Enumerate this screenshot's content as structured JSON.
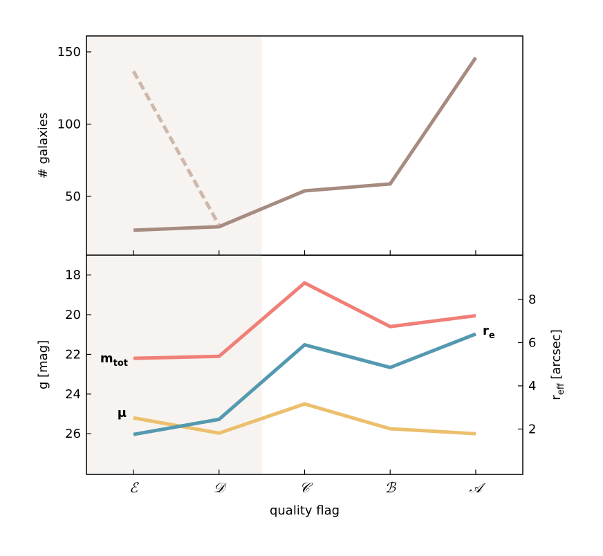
{
  "chart_data": [
    {
      "type": "line",
      "ylabel": "# galaxies",
      "xlim": [
        -0.55,
        4.55
      ],
      "ylim": [
        9.3,
        161
      ],
      "yticks": [
        50,
        100,
        150
      ],
      "shaded_xlim": [
        -0.55,
        1.5
      ],
      "shade_color": "#f7f3f0",
      "series": [
        {
          "color": "#a68b80",
          "dashed": false,
          "values": [
            26.6,
            29,
            53.8,
            58.6,
            146
          ]
        },
        {
          "color": "#cdb8ab",
          "dashed": true,
          "values": [
            136.6,
            30,
            null,
            null,
            null
          ]
        }
      ]
    },
    {
      "type": "line",
      "xlabel": "quality flag",
      "categories": [
        "ℰ",
        "𝒟",
        "𝒞",
        "ℬ",
        "𝒜"
      ],
      "ylabel": "g [mag]",
      "y2label": {
        "main": "r",
        "sub": "eff",
        "rest": " [arcsec]"
      },
      "xlim": [
        -0.55,
        4.55
      ],
      "ylim": [
        28.05,
        17.0
      ],
      "yticks": [
        18,
        20,
        22,
        24,
        26
      ],
      "y2lim": [
        -0.1,
        10.05
      ],
      "y2ticks": [
        2,
        4,
        6,
        8
      ],
      "shaded_xlim": [
        -0.55,
        1.5
      ],
      "shade_color": "#f7f3f0",
      "series": [
        {
          "name": {
            "main": "m",
            "sub": "tot"
          },
          "color": "#f07f77",
          "values": [
            22.2,
            22.1,
            18.4,
            20.6,
            20.05
          ]
        },
        {
          "name": {
            "main": "μ",
            "sub": ""
          },
          "color": "#ebbf6c",
          "values": [
            25.2,
            25.97,
            24.5,
            25.75,
            26.0
          ]
        },
        {
          "name": {
            "main": "r",
            "sub": "e"
          },
          "color": "#5399b0",
          "axis": "y2",
          "values": [
            1.75,
            2.45,
            5.9,
            4.85,
            6.4
          ]
        }
      ]
    }
  ]
}
